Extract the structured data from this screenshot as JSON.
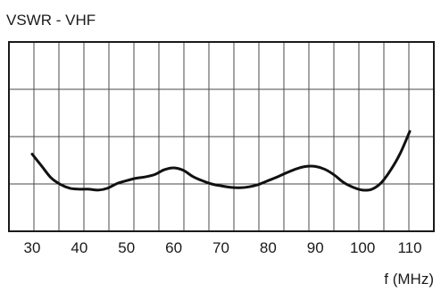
{
  "chart_data": {
    "type": "line",
    "title": "VSWR - VHF",
    "xlabel": "f (MHz)",
    "ylabel": "",
    "xlim": [
      30,
      110
    ],
    "x_ticks": [
      30,
      40,
      50,
      60,
      70,
      80,
      90,
      100,
      110
    ],
    "ylim": [
      0,
      4
    ],
    "y_ticks": [],
    "grid": true,
    "grid_x_divisions": 17,
    "grid_y_divisions": 4,
    "series": [
      {
        "name": "",
        "color": "#111111",
        "x": [
          30,
          32,
          34,
          36,
          38,
          40,
          42,
          44,
          46,
          48,
          50,
          52,
          54,
          56,
          58,
          60,
          62,
          64,
          66,
          68,
          70,
          72,
          74,
          76,
          78,
          80,
          82,
          84,
          86,
          88,
          90,
          92,
          94,
          96,
          98,
          100,
          102,
          104,
          106,
          108,
          110
        ],
        "y": [
          1.63,
          1.38,
          1.13,
          0.99,
          0.91,
          0.89,
          0.89,
          0.87,
          0.91,
          1.01,
          1.07,
          1.12,
          1.15,
          1.2,
          1.3,
          1.34,
          1.29,
          1.16,
          1.07,
          1.0,
          0.96,
          0.93,
          0.92,
          0.94,
          0.99,
          1.07,
          1.15,
          1.24,
          1.32,
          1.37,
          1.37,
          1.31,
          1.19,
          1.03,
          0.93,
          0.87,
          0.89,
          1.03,
          1.3,
          1.65,
          2.11
        ]
      }
    ]
  }
}
